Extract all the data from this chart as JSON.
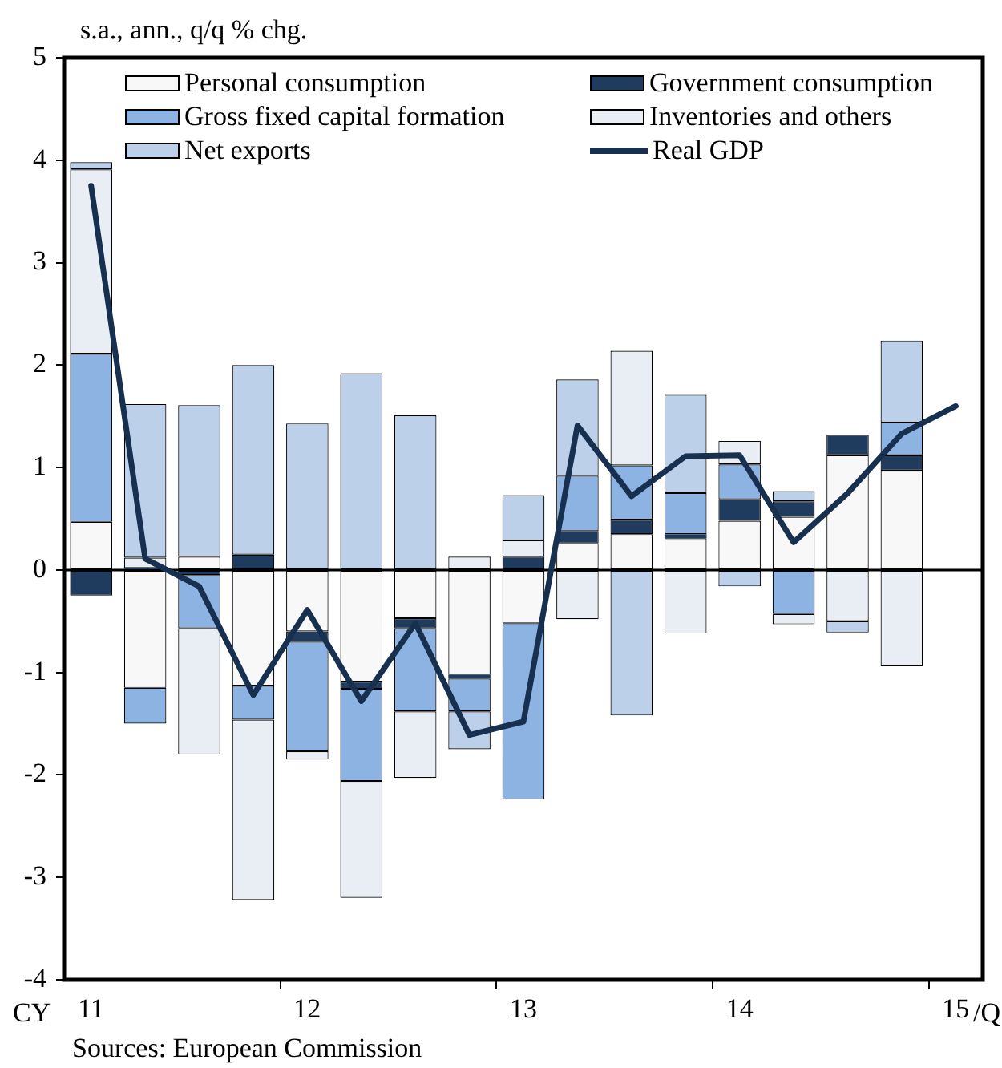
{
  "chart_data": {
    "type": "bar",
    "stacked": true,
    "ylabel": "s.a., ann., q/q % chg.",
    "categories": [
      "11",
      null,
      null,
      null,
      "12",
      null,
      null,
      null,
      "13",
      null,
      null,
      null,
      "14",
      null,
      null,
      null,
      "15"
    ],
    "ylim": [
      -4,
      5
    ],
    "yticks": [
      -4,
      -3,
      -2,
      -1,
      0,
      1,
      2,
      3,
      4,
      5
    ],
    "grid": false,
    "legend": "top",
    "ref_lines": [
      {
        "axis": "y",
        "value": 0,
        "color": "#000000"
      }
    ],
    "annotations": [
      "CY",
      "/Q",
      "Sources: European Commission"
    ],
    "series": [
      {
        "name": "Personal consumption",
        "color": "#f8f8f8",
        "values": [
          0.47,
          -1.15,
          0.13,
          -1.13,
          -0.6,
          -1.09,
          -0.47,
          -1.02,
          -0.52,
          0.26,
          0.35,
          0.31,
          0.48,
          0.52,
          1.12,
          0.97,
          null
        ]
      },
      {
        "name": "Government consumption",
        "color": "#1f3b5e",
        "values": [
          -0.25,
          0.02,
          -0.05,
          0.15,
          -0.1,
          -0.07,
          -0.1,
          -0.04,
          0.13,
          0.12,
          0.14,
          0.04,
          0.21,
          0.15,
          0.2,
          0.15,
          null
        ]
      },
      {
        "name": "Gross fixed capital formation",
        "color": "#8db3e2",
        "values": [
          1.64,
          -0.35,
          -0.52,
          -0.33,
          -1.07,
          -0.9,
          -0.81,
          -0.32,
          -1.72,
          0.54,
          0.53,
          0.4,
          0.34,
          -0.43,
          0,
          0.32,
          null
        ]
      },
      {
        "name": "Inventories and others",
        "color": "#e9eef5",
        "values": [
          1.8,
          0.1,
          -1.23,
          -1.76,
          -0.08,
          -1.14,
          -0.65,
          0.13,
          0.16,
          -0.48,
          1.12,
          -0.62,
          0.23,
          -0.1,
          -0.5,
          -0.94,
          null
        ]
      },
      {
        "name": "Net exports",
        "color": "#bcd0ea",
        "values": [
          0.07,
          1.5,
          1.48,
          1.85,
          1.43,
          1.92,
          1.51,
          -0.37,
          0.44,
          0.94,
          -1.42,
          0.96,
          -0.16,
          0.1,
          -0.11,
          0.8,
          null
        ]
      },
      {
        "name": "Real GDP",
        "type": "line",
        "color": "#17304f",
        "values": [
          3.75,
          0.11,
          -0.16,
          -1.22,
          -0.39,
          -1.28,
          -0.52,
          -1.61,
          -1.48,
          1.41,
          0.72,
          1.11,
          1.12,
          0.27,
          0.75,
          1.33,
          1.6
        ]
      }
    ]
  }
}
